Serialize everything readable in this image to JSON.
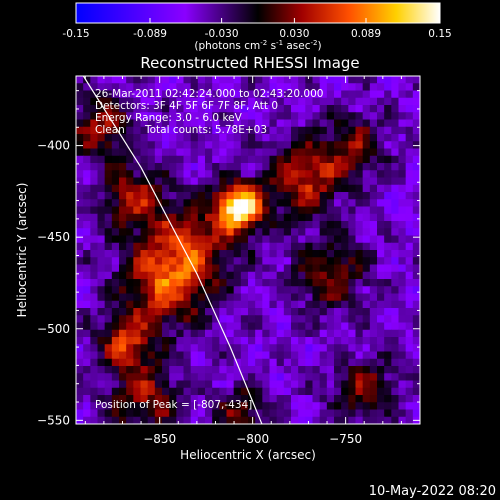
{
  "colorbar": {
    "ticks": [
      "-0.15",
      "-0.089",
      "-0.030",
      "0.030",
      "0.089",
      "0.15"
    ],
    "tick_values": [
      -0.15,
      -0.089,
      -0.03,
      0.03,
      0.089,
      0.15
    ],
    "units_main": "(photons cm",
    "units_exp1": "-2",
    "units_mid": " s",
    "units_exp2": "-1",
    "units_tail": " asec",
    "units_exp3": "-2",
    "units_close": ")",
    "colors": [
      "#0000ff",
      "#8a00ff",
      "#000000",
      "#a00000",
      "#ff5000",
      "#ffd000",
      "#ffffff"
    ]
  },
  "plot": {
    "title": "Reconstructed RHESSI Image",
    "xlabel": "Heliocentric X (arcsec)",
    "ylabel": "Heliocentric Y (arcsec)"
  },
  "annotations": {
    "time": "26-Mar-2011 02:42:24.000 to 02:43:20.000",
    "detectors": "Detectors: 3F 4F 5F 6F 7F 8F, Att 0",
    "energy": "Energy Range: 3.0 - 6.0 keV",
    "clean_label": "Clean",
    "counts": "Total counts: 5.78E+03",
    "peak": "Position of Peak = [-807,-434]"
  },
  "footer": {
    "timestamp": "10-May-2022 08:20"
  },
  "chart_data": {
    "type": "heatmap",
    "title": "Reconstructed RHESSI Image",
    "xlabel": "Heliocentric X (arcsec)",
    "ylabel": "Heliocentric Y (arcsec)",
    "xlim": [
      -895,
      -710
    ],
    "ylim": [
      -552,
      -362
    ],
    "x_ticks": [
      -850,
      -800,
      -750
    ],
    "y_ticks": [
      -400,
      -450,
      -500,
      -550
    ],
    "zlim": [
      -0.15,
      0.15
    ],
    "peak": {
      "x": -807,
      "y": -434
    },
    "sources": [
      {
        "x": -807,
        "y": -434,
        "flux": 0.15,
        "sigma": 9
      },
      {
        "x": -772,
        "y": -418,
        "flux": 0.06,
        "sigma": 14
      },
      {
        "x": -848,
        "y": -478,
        "flux": 0.05,
        "sigma": 16
      },
      {
        "x": -868,
        "y": -508,
        "flux": 0.06,
        "sigma": 10
      },
      {
        "x": -858,
        "y": -538,
        "flux": 0.04,
        "sigma": 14
      },
      {
        "x": -835,
        "y": -455,
        "flux": 0.05,
        "sigma": 18
      },
      {
        "x": -882,
        "y": -390,
        "flux": 0.045,
        "sigma": 12
      },
      {
        "x": -758,
        "y": -470,
        "flux": 0.035,
        "sigma": 14
      },
      {
        "x": -805,
        "y": -545,
        "flux": 0.03,
        "sigma": 10
      },
      {
        "x": -740,
        "y": -533,
        "flux": 0.035,
        "sigma": 12
      },
      {
        "x": -865,
        "y": -428,
        "flux": 0.04,
        "sigma": 12
      },
      {
        "x": -745,
        "y": -400,
        "flux": 0.03,
        "sigma": 12
      }
    ],
    "limb": [
      {
        "x": -891,
        "y": -362
      },
      {
        "x": -860,
        "y": -412
      },
      {
        "x": -830,
        "y": -470
      },
      {
        "x": -812,
        "y": -510
      },
      {
        "x": -795,
        "y": -552
      }
    ]
  }
}
